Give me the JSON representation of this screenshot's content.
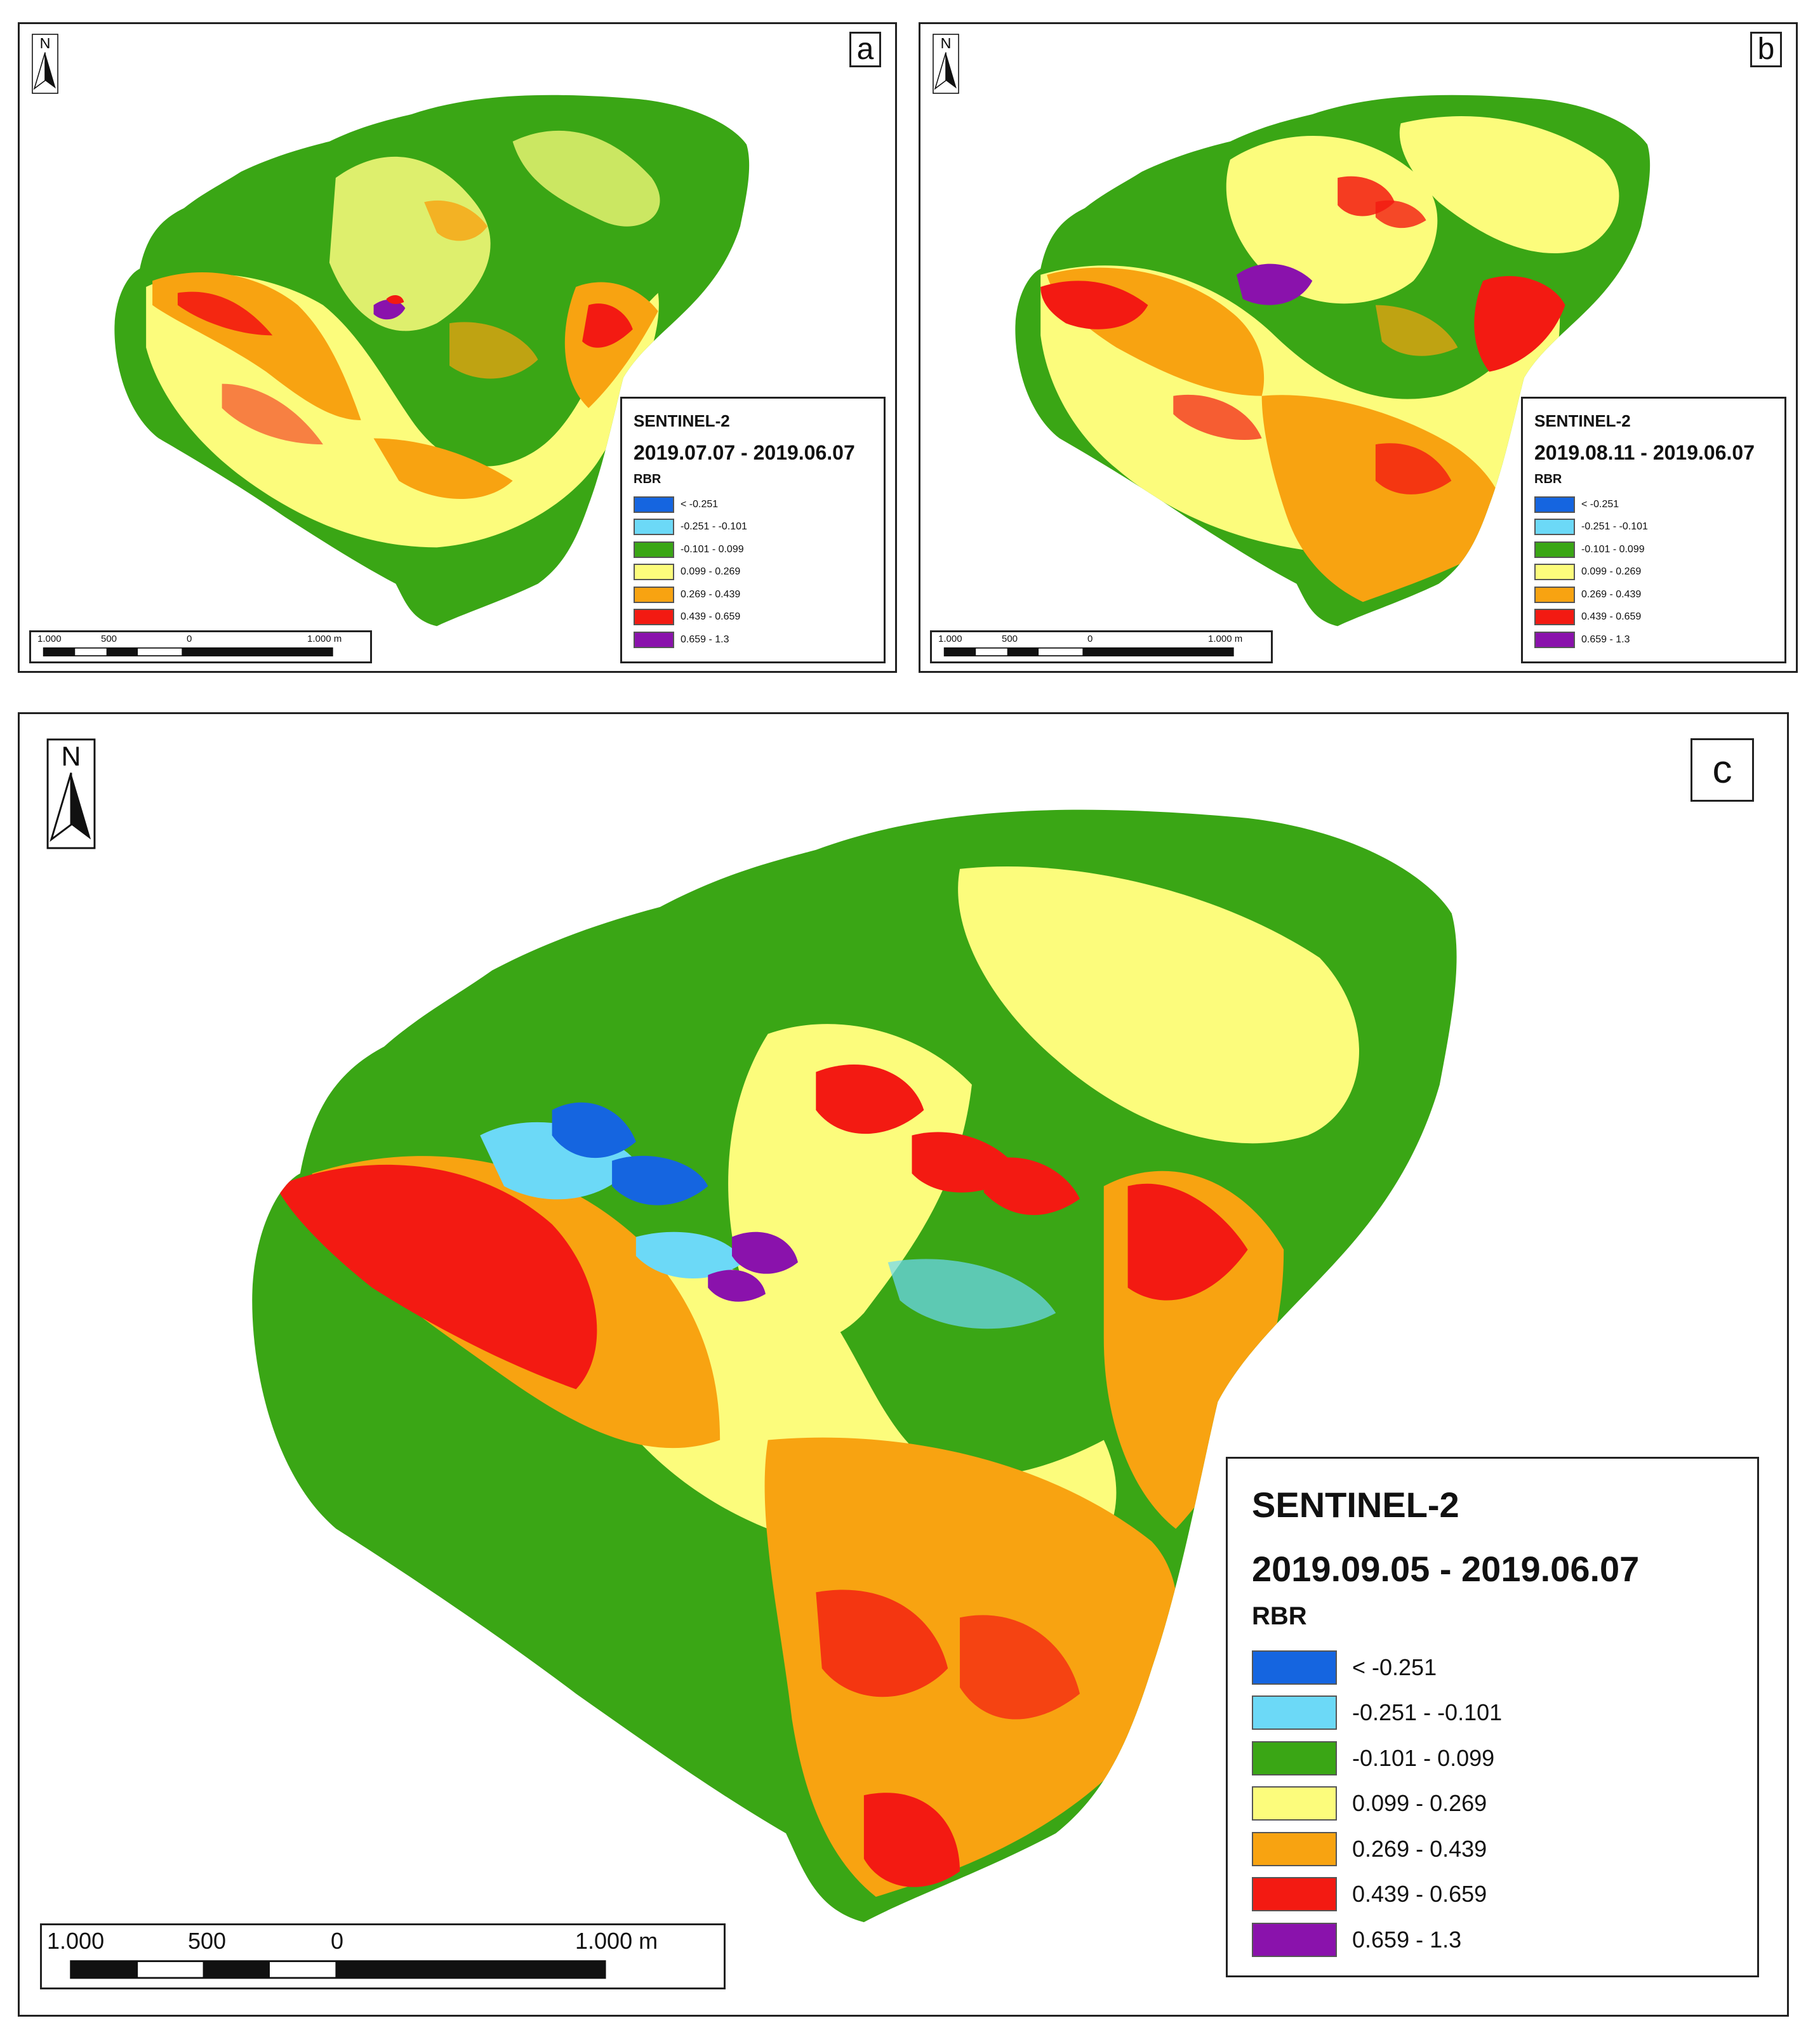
{
  "legend_classes": [
    {
      "label": "< -0.251",
      "color": "#1565e0"
    },
    {
      "label": "-0.251 - -0.101",
      "color": "#6cd9f7"
    },
    {
      "label": "-0.101 - 0.099",
      "color": "#3aa615"
    },
    {
      "label": "0.099 - 0.269",
      "color": "#fcfc7c"
    },
    {
      "label": "0.269 - 0.439",
      "color": "#f8a311"
    },
    {
      "label": "0.439 - 0.659",
      "color": "#f31a12"
    },
    {
      "label": "0.659 - 1.3",
      "color": "#8a12ac"
    }
  ],
  "north_label": "N",
  "scale_ticks": [
    "1.000",
    "500",
    "0",
    "1.000 m"
  ],
  "panels": [
    {
      "id": "a",
      "letter": "a",
      "sensor": "SENTINEL-2",
      "dates": "2019.07.07 - 2019.06.07",
      "index": "RBR"
    },
    {
      "id": "b",
      "letter": "b",
      "sensor": "SENTINEL-2",
      "dates": "2019.08.11 - 2019.06.07",
      "index": "RBR"
    },
    {
      "id": "c",
      "letter": "c",
      "sensor": "SENTINEL-2",
      "dates": "2019.09.05 - 2019.06.07",
      "index": "RBR"
    }
  ]
}
